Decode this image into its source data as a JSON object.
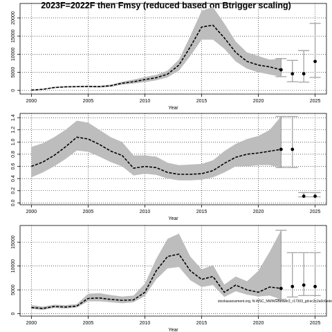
{
  "title": "2023F=2022F then Fmsy (reduced based on Btrigger scaling)",
  "credit": "stockassessment.org, N-WSC_NWWGBbtwer2_r17303_git:ec2c2a0c6ede",
  "chart_data": [
    {
      "type": "line",
      "years": [
        2000,
        2001,
        2002,
        2003,
        2004,
        2005,
        2006,
        2007,
        2008,
        2009,
        2010,
        2011,
        2012,
        2013,
        2014,
        2015,
        2016,
        2017,
        2018,
        2019,
        2020,
        2021,
        2022
      ],
      "estimate": [
        100,
        300,
        800,
        1000,
        1050,
        1100,
        1050,
        1300,
        2000,
        2400,
        3000,
        3500,
        4500,
        7000,
        12000,
        17500,
        18000,
        14500,
        10500,
        8000,
        7000,
        6500,
        5700
      ],
      "lower": [
        50,
        200,
        600,
        800,
        850,
        850,
        800,
        1000,
        1600,
        1900,
        2300,
        2800,
        3600,
        5500,
        9500,
        14000,
        14000,
        11500,
        8000,
        6000,
        5000,
        4400,
        3800
      ],
      "upper": [
        150,
        400,
        1000,
        1200,
        1250,
        1300,
        1300,
        1600,
        2400,
        3000,
        3700,
        4300,
        5500,
        8500,
        15000,
        22000,
        23000,
        18500,
        13500,
        10500,
        9500,
        8500,
        8800
      ],
      "forecast": [
        {
          "year": 2022,
          "value": 5700,
          "low": 3800,
          "high": 8800
        },
        {
          "year": 2023,
          "value": 4600,
          "low": 2400,
          "high": 8300
        },
        {
          "year": 2024,
          "value": 4600,
          "low": 2300,
          "high": 11000
        },
        {
          "year": 2025,
          "value": 8000,
          "low": 3600,
          "high": 18500
        }
      ],
      "xlim": [
        1999,
        2026
      ],
      "ylim": [
        -1000,
        24000
      ],
      "x_ticks": [
        2000,
        2005,
        2010,
        2015,
        2020,
        2025
      ],
      "y_ticks": [
        0,
        5000,
        10000,
        15000,
        20000
      ],
      "y_tick_labels": [
        "0",
        "5000",
        "10000",
        "15000",
        "20000"
      ],
      "xlabel": "Year",
      "ylabel": "",
      "grid": true
    },
    {
      "type": "line",
      "years": [
        2000,
        2001,
        2002,
        2003,
        2004,
        2005,
        2006,
        2007,
        2008,
        2009,
        2010,
        2011,
        2012,
        2013,
        2014,
        2015,
        2016,
        2017,
        2018,
        2019,
        2020,
        2021,
        2022
      ],
      "estimate": [
        0.6,
        0.67,
        0.78,
        0.92,
        1.08,
        1.05,
        0.96,
        0.85,
        0.78,
        0.57,
        0.6,
        0.58,
        0.5,
        0.47,
        0.47,
        0.48,
        0.53,
        0.65,
        0.75,
        0.8,
        0.82,
        0.85,
        0.88
      ],
      "lower": [
        0.42,
        0.5,
        0.6,
        0.72,
        0.86,
        0.84,
        0.76,
        0.67,
        0.6,
        0.45,
        0.48,
        0.46,
        0.4,
        0.37,
        0.37,
        0.38,
        0.42,
        0.5,
        0.6,
        0.6,
        0.62,
        0.62,
        0.58
      ],
      "upper": [
        0.92,
        0.98,
        1.08,
        1.2,
        1.35,
        1.32,
        1.2,
        1.08,
        1.0,
        0.78,
        0.78,
        0.76,
        0.66,
        0.62,
        0.63,
        0.64,
        0.7,
        0.85,
        0.97,
        1.05,
        1.1,
        1.2,
        1.42
      ],
      "forecast": [
        {
          "year": 2022,
          "value": 0.88,
          "low": 0.58,
          "high": 1.42
        },
        {
          "year": 2023,
          "value": 0.88,
          "low": 0.58,
          "high": 1.42
        },
        {
          "year": 2024,
          "value": 0.11,
          "low": 0.1,
          "high": 0.17
        },
        {
          "year": 2025,
          "value": 0.11,
          "low": 0.1,
          "high": 0.17
        }
      ],
      "xlim": [
        1999,
        2026
      ],
      "ylim": [
        -0.03,
        1.47
      ],
      "x_ticks": [
        2000,
        2005,
        2010,
        2015,
        2020,
        2025
      ],
      "y_ticks": [
        0,
        0.2,
        0.4,
        0.6,
        0.8,
        1.0,
        1.2,
        1.4
      ],
      "y_tick_labels": [
        "0.0",
        "0.2",
        "0.4",
        "0.6",
        "0.8",
        "1.0",
        "1.2",
        "1.4"
      ],
      "xlabel": "Year",
      "ylabel": "",
      "grid": true
    },
    {
      "type": "line",
      "years": [
        2000,
        2001,
        2002,
        2003,
        2004,
        2005,
        2006,
        2007,
        2008,
        2009,
        2010,
        2011,
        2012,
        2013,
        2014,
        2015,
        2016,
        2017,
        2018,
        2019,
        2020,
        2021,
        2022
      ],
      "estimate": [
        1300,
        1100,
        1500,
        1400,
        1600,
        3200,
        3300,
        3000,
        2800,
        2900,
        4500,
        9000,
        12000,
        12500,
        9000,
        7200,
        7800,
        4500,
        6000,
        5000,
        4500,
        5600,
        5300
      ],
      "lower": [
        1000,
        800,
        1200,
        1100,
        1300,
        2600,
        2600,
        2400,
        2200,
        2400,
        3700,
        7200,
        9500,
        9800,
        7000,
        5600,
        6000,
        3500,
        4700,
        4000,
        3600,
        3800,
        3000
      ],
      "upper": [
        1800,
        1500,
        1900,
        1800,
        2000,
        4200,
        4300,
        3900,
        3600,
        3800,
        6300,
        11500,
        15700,
        16800,
        12000,
        9300,
        10200,
        6100,
        7800,
        6800,
        9000,
        13000,
        17500
      ],
      "forecast": [
        {
          "year": 2022,
          "value": 5300,
          "low": 3000,
          "high": 17500
        },
        {
          "year": 2023,
          "value": 5700,
          "low": 3500,
          "high": 12800
        },
        {
          "year": 2024,
          "value": 6000,
          "low": 3800,
          "high": 12800
        },
        {
          "year": 2025,
          "value": 5700,
          "low": 3800,
          "high": 12800
        }
      ],
      "xlim": [
        1999,
        2026
      ],
      "ylim": [
        -500,
        18500
      ],
      "x_ticks": [
        2000,
        2005,
        2010,
        2015,
        2020,
        2025
      ],
      "y_ticks": [
        0,
        5000,
        10000,
        15000
      ],
      "y_tick_labels": [
        "0",
        "5000",
        "10000",
        "15000"
      ],
      "xlabel": "Year",
      "ylabel": "",
      "grid": true
    }
  ]
}
